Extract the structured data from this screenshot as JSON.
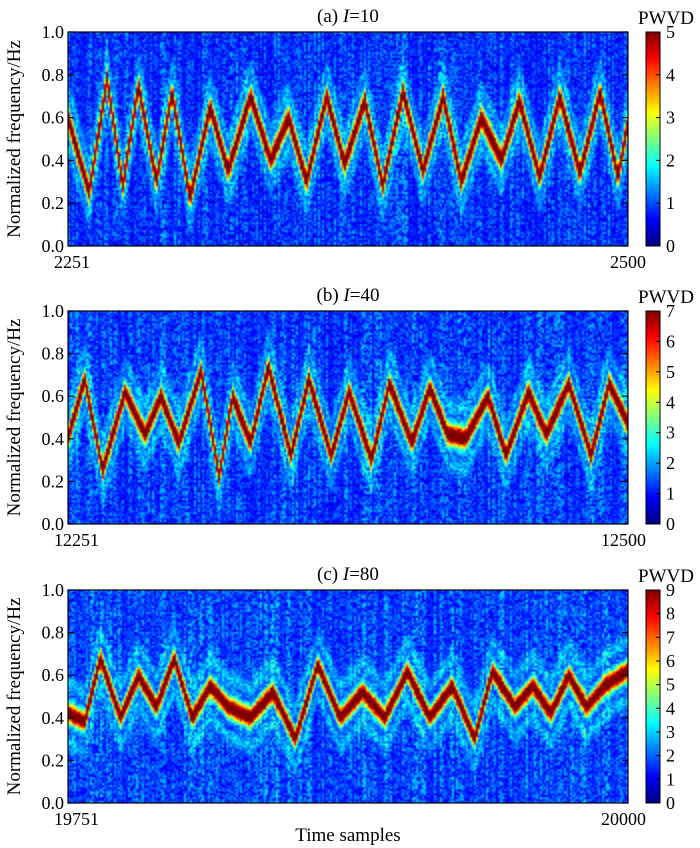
{
  "figure": {
    "shared_xlabel": "Time samples",
    "shared_ylabel": "Normalized frequency/Hz",
    "colorbar_label": "PWVD",
    "colormap": "jet",
    "colors": {
      "jet_stops": [
        "#00007f",
        "#0000ff",
        "#007fff",
        "#00ffff",
        "#7fff7f",
        "#ffff00",
        "#ff7f00",
        "#ff0000",
        "#7f0000"
      ]
    }
  },
  "chart_data": [
    {
      "type": "heatmap",
      "title_prefix": "(a) ",
      "title_var": "I",
      "title_suffix": "=10",
      "xlabel": "",
      "ylabel": "Normalized frequency/Hz",
      "x_tick_labels": [
        "2251",
        "2500"
      ],
      "xlim": [
        2251,
        2500
      ],
      "y_ticks": [
        "0.0",
        "0.2",
        "0.4",
        "0.6",
        "0.8",
        "1.0"
      ],
      "ylim": [
        0.0,
        1.0
      ],
      "colorbar": {
        "label": "PWVD",
        "ticks": [
          "0",
          "1",
          "2",
          "3",
          "4",
          "5"
        ],
        "range": [
          0,
          5
        ]
      },
      "ridge": {
        "x": [
          2251,
          2260,
          2268,
          2275,
          2282,
          2290,
          2297,
          2305,
          2314,
          2322,
          2332,
          2341,
          2349,
          2357,
          2366,
          2374,
          2383,
          2391,
          2400,
          2409,
          2418,
          2426,
          2435,
          2444,
          2452,
          2461,
          2470,
          2479,
          2488,
          2496,
          2500
        ],
        "y": [
          0.58,
          0.25,
          0.78,
          0.28,
          0.75,
          0.3,
          0.72,
          0.22,
          0.65,
          0.35,
          0.7,
          0.4,
          0.6,
          0.3,
          0.7,
          0.38,
          0.68,
          0.28,
          0.72,
          0.35,
          0.7,
          0.3,
          0.6,
          0.4,
          0.68,
          0.32,
          0.7,
          0.34,
          0.72,
          0.32,
          0.55
        ],
        "peak": 5.0,
        "width": 0.055
      },
      "noise_level": 1.3
    },
    {
      "type": "heatmap",
      "title_prefix": "(b) ",
      "title_var": "I",
      "title_suffix": "=40",
      "xlabel": "",
      "ylabel": "Normalized frequency/Hz",
      "x_tick_labels": [
        "12251",
        "12500"
      ],
      "xlim": [
        12251,
        12500
      ],
      "y_ticks": [
        "0.0",
        "0.2",
        "0.4",
        "0.6",
        "0.8",
        "1.0"
      ],
      "ylim": [
        0.0,
        1.0
      ],
      "colorbar": {
        "label": "PWVD",
        "ticks": [
          "0",
          "1",
          "2",
          "3",
          "4",
          "5",
          "6",
          "7"
        ],
        "range": [
          0,
          7
        ]
      },
      "ridge": {
        "x": [
          12251,
          12258,
          12266,
          12276,
          12285,
          12292,
          12300,
          12310,
          12318,
          12324,
          12332,
          12340,
          12350,
          12358,
          12368,
          12376,
          12386,
          12394,
          12404,
          12412,
          12420,
          12428,
          12438,
          12446,
          12456,
          12464,
          12474,
          12484,
          12492,
          12500
        ],
        "y": [
          0.42,
          0.68,
          0.25,
          0.62,
          0.42,
          0.6,
          0.38,
          0.72,
          0.22,
          0.6,
          0.38,
          0.74,
          0.32,
          0.68,
          0.32,
          0.62,
          0.3,
          0.66,
          0.38,
          0.64,
          0.42,
          0.4,
          0.6,
          0.32,
          0.62,
          0.42,
          0.66,
          0.32,
          0.66,
          0.48
        ],
        "peak": 7.0,
        "width": 0.05
      },
      "noise_level": 1.9
    },
    {
      "type": "heatmap",
      "title_prefix": "(c) ",
      "title_var": "I",
      "title_suffix": "=80",
      "xlabel": "Time samples",
      "ylabel": "Normalized frequency/Hz",
      "x_tick_labels": [
        "19751",
        "20000"
      ],
      "xlim": [
        19751,
        20000
      ],
      "y_ticks": [
        "0.0",
        "0.2",
        "0.4",
        "0.6",
        "0.8",
        "1.0"
      ],
      "ylim": [
        0.0,
        1.0
      ],
      "colorbar": {
        "label": "PWVD",
        "ticks": [
          "0",
          "1",
          "2",
          "3",
          "4",
          "5",
          "6",
          "7",
          "8",
          "9"
        ],
        "range": [
          0,
          9
        ]
      },
      "ridge": {
        "x": [
          19751,
          19758,
          19765,
          19774,
          19782,
          19790,
          19798,
          19806,
          19814,
          19822,
          19832,
          19842,
          19852,
          19862,
          19872,
          19882,
          19892,
          19902,
          19912,
          19922,
          19932,
          19940,
          19950,
          19958,
          19966,
          19974,
          19982,
          19990,
          20000
        ],
        "y": [
          0.42,
          0.38,
          0.68,
          0.4,
          0.6,
          0.45,
          0.68,
          0.4,
          0.55,
          0.45,
          0.4,
          0.52,
          0.3,
          0.65,
          0.4,
          0.52,
          0.4,
          0.62,
          0.4,
          0.55,
          0.3,
          0.62,
          0.45,
          0.55,
          0.42,
          0.6,
          0.45,
          0.55,
          0.62
        ],
        "peak": 9.0,
        "width": 0.045
      },
      "noise_level": 2.6
    }
  ]
}
